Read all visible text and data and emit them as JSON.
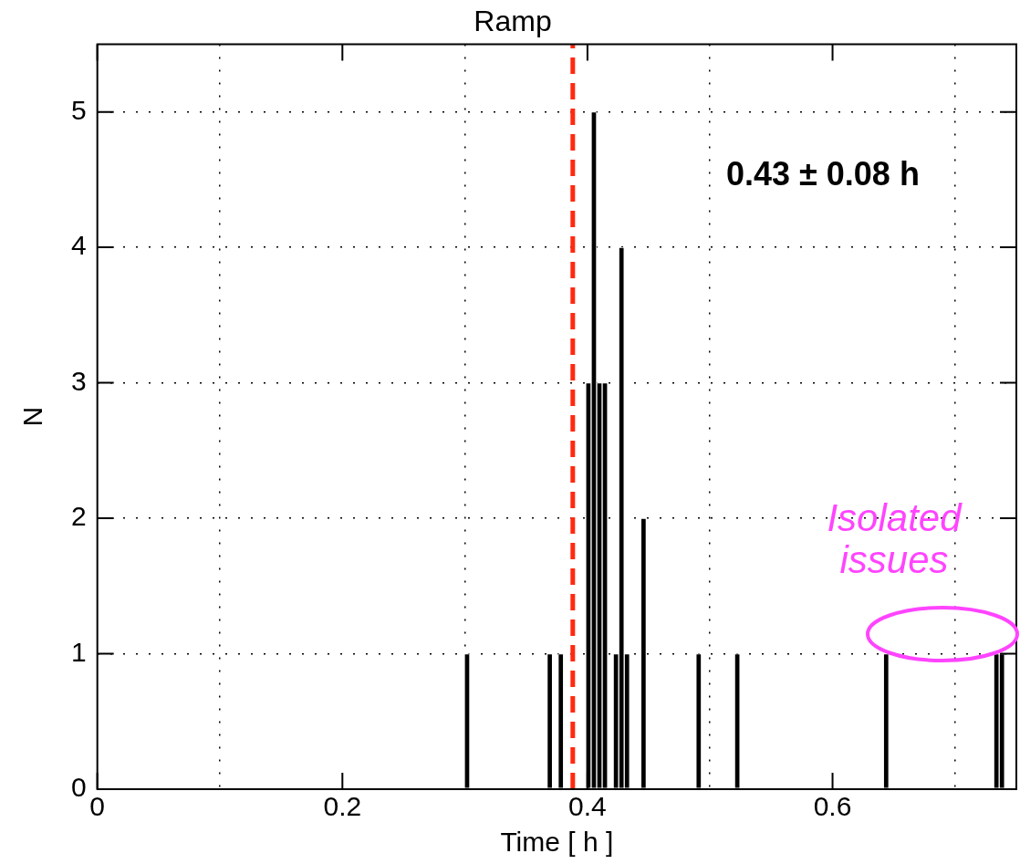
{
  "chart_data": {
    "type": "histogram",
    "title": "Ramp",
    "xlabel": "Time [ h ]",
    "ylabel": "N",
    "bins": [
      0.2995,
      0.304,
      0.3085,
      0.313,
      0.3175,
      0.322,
      0.3265,
      0.331,
      0.3355,
      0.34,
      0.3445,
      0.349,
      0.3535,
      0.358,
      0.3625,
      0.367,
      0.3715,
      0.376,
      0.3805,
      0.385,
      0.3895,
      0.394,
      0.3985,
      0.403,
      0.4075,
      0.412,
      0.4165,
      0.421,
      0.4255,
      0.43,
      0.4345,
      0.439,
      0.4435,
      0.448,
      0.4525,
      0.457,
      0.4615,
      0.466,
      0.4705,
      0.475,
      0.4795,
      0.484,
      0.4885,
      0.493,
      0.4975,
      0.502,
      0.5065,
      0.511,
      0.5155,
      0.52,
      0.5245,
      0.529,
      0.5335,
      0.538,
      0.5425,
      0.547,
      0.5515,
      0.556,
      0.5605,
      0.565,
      0.5695,
      0.574,
      0.5785,
      0.583,
      0.5875,
      0.592,
      0.5965,
      0.601,
      0.6055,
      0.61,
      0.6145,
      0.619,
      0.6235,
      0.628,
      0.6325,
      0.637,
      0.6415,
      0.646,
      0.6505,
      0.655,
      0.6595,
      0.664,
      0.6685,
      0.673,
      0.6775,
      0.682,
      0.6865,
      0.691,
      0.6955,
      0.7,
      0.7045,
      0.709,
      0.7135,
      0.718,
      0.7225,
      0.727,
      0.7315,
      0.736,
      0.7405
    ],
    "values": [
      1,
      0,
      0,
      0,
      0,
      0,
      0,
      0,
      0,
      0,
      0,
      0,
      0,
      0,
      0,
      1,
      0,
      1,
      0,
      0,
      0,
      0,
      3,
      5,
      3,
      3,
      0,
      1,
      4,
      1,
      0,
      0,
      2,
      0,
      0,
      0,
      0,
      0,
      0,
      0,
      0,
      0,
      1,
      0,
      0,
      0,
      0,
      0,
      0,
      1,
      0,
      0,
      0,
      0,
      0,
      0,
      0,
      0,
      0,
      0,
      0,
      0,
      0,
      0,
      0,
      0,
      0,
      0,
      0,
      0,
      0,
      0,
      0,
      0,
      0,
      0,
      1,
      0,
      0,
      0,
      0,
      0,
      0,
      0,
      0,
      0,
      0,
      0,
      0,
      0,
      0,
      0,
      0,
      0,
      0,
      0,
      1,
      1
    ],
    "color": "#000000",
    "xlim": [
      0,
      0.75
    ],
    "xticks": [
      0,
      0.2,
      0.4,
      0.6
    ],
    "ylim": [
      0,
      5.5
    ],
    "yticks": [
      0,
      1,
      2,
      3,
      4,
      5
    ],
    "grid": true,
    "ref_lines": [
      {
        "axis": "x",
        "value": 0.388,
        "color": "#ff2a10",
        "line_style": "dashed"
      }
    ],
    "annotations": [
      "0.43 ± 0.08 h",
      "Isolated issues"
    ]
  }
}
